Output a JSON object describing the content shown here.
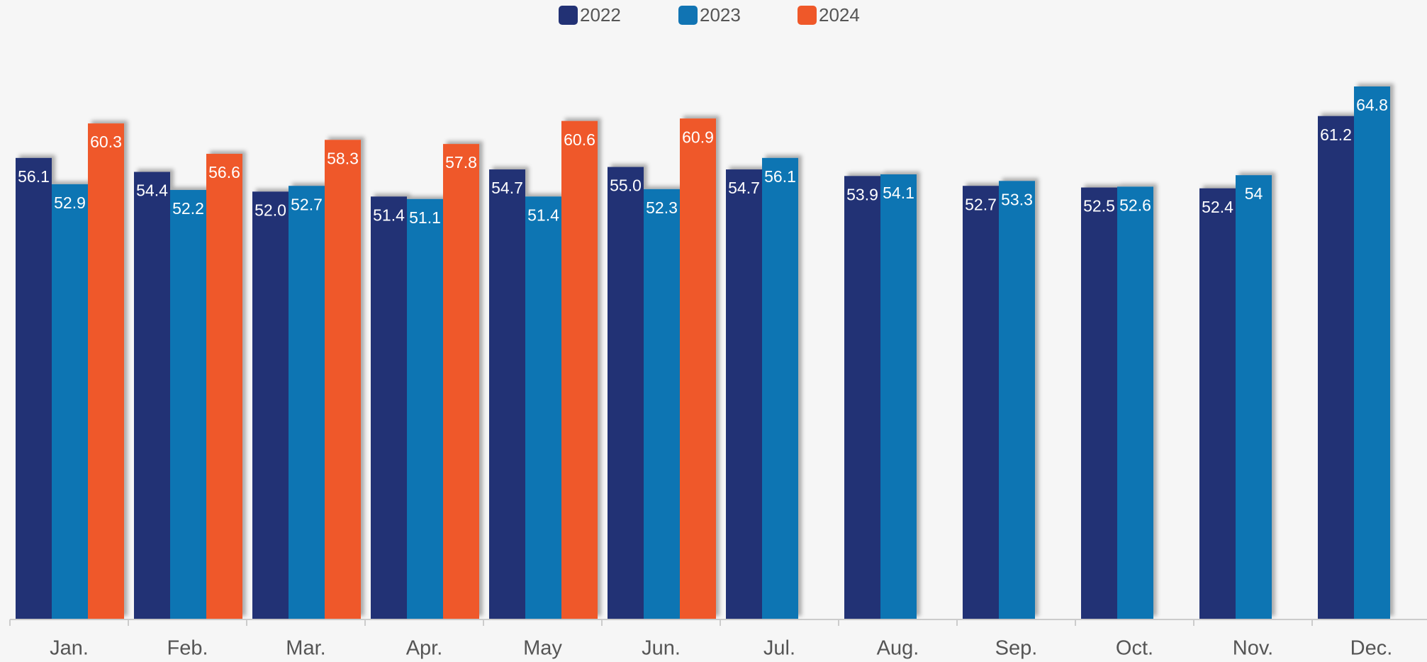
{
  "chart_data": {
    "type": "bar",
    "categories": [
      "Jan.",
      "Feb.",
      "Mar.",
      "Apr.",
      "May",
      "Jun.",
      "Jul.",
      "Aug.",
      "Sep.",
      "Oct.",
      "Nov.",
      "Dec."
    ],
    "series": [
      {
        "name": "2022",
        "color": "#223174",
        "values": [
          56.1,
          54.4,
          52,
          51.4,
          54.7,
          55,
          54.7,
          53.9,
          52.7,
          52.5,
          52.4,
          61.2
        ],
        "value_labels": [
          "56.1",
          "54.4",
          "52.0",
          "51.4",
          "54.7",
          "55.0",
          "54.7",
          "53.9",
          "52.7",
          "52.5",
          "52.4",
          "61.2"
        ]
      },
      {
        "name": "2023",
        "color": "#1174b3",
        "values": [
          52.9,
          52.2,
          52.7,
          51.1,
          51.4,
          52.3,
          56.1,
          54.1,
          53.3,
          52.6,
          54,
          64.8
        ]
      },
      {
        "name": "2024",
        "color": "#ef5829",
        "values": [
          60.3,
          56.6,
          58.3,
          57.8,
          60.6,
          60.9,
          null,
          null,
          null,
          null,
          null,
          null
        ]
      }
    ],
    "legend": "top"
  }
}
